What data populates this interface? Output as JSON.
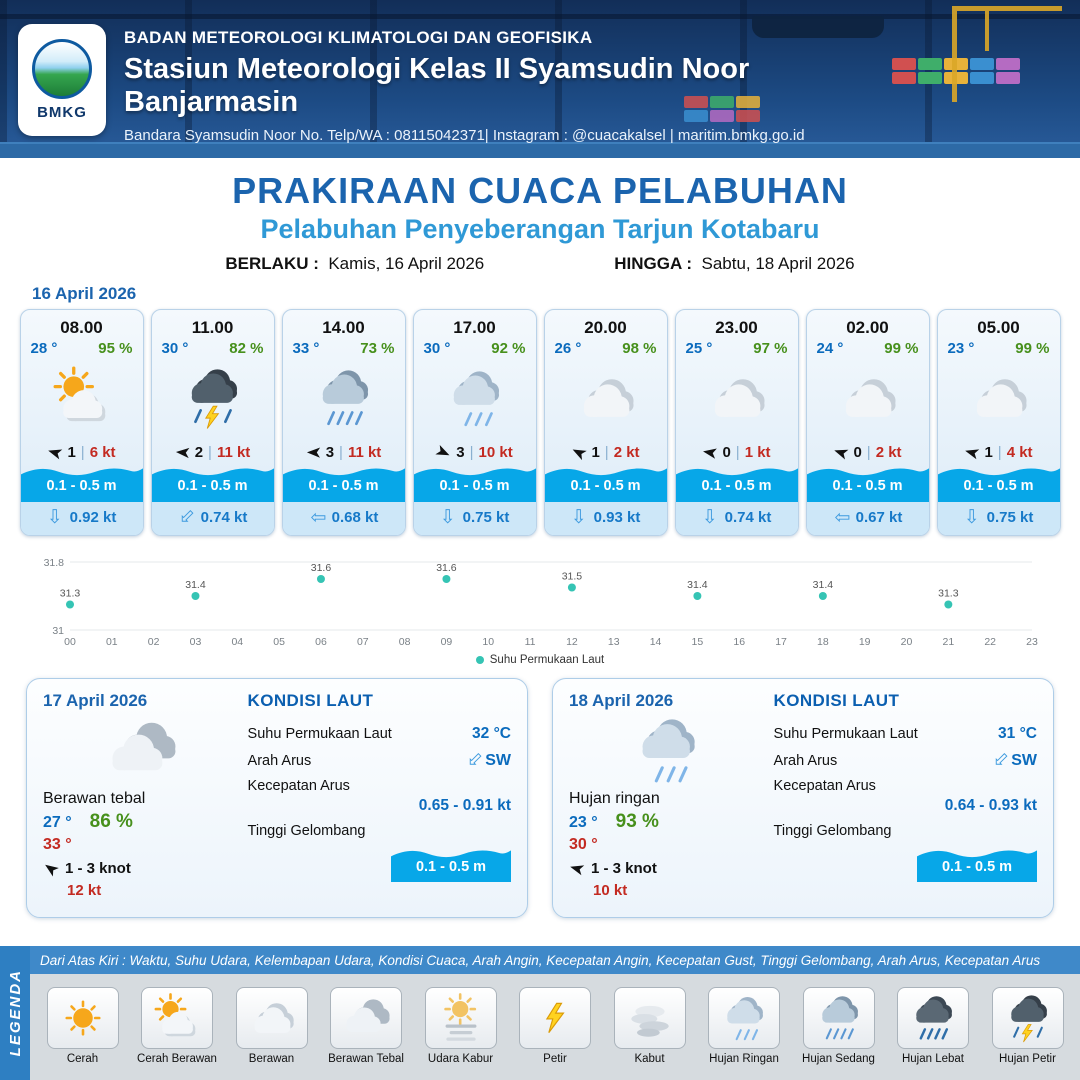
{
  "colors": {
    "title_blue": "#1b64ae",
    "subtitle_blue": "#2f99d6",
    "temp_blue": "#0b6bbd",
    "humidity_green": "#47901c",
    "alert_red": "#c32a21",
    "wave_blue": "#07a7e8",
    "chart_dot_teal": "#35c4b4",
    "header_navy": "#122e58"
  },
  "header": {
    "logo_text": "BMKG",
    "line1": "BADAN METEOROLOGI KLIMATOLOGI DAN GEOFISIKA",
    "line2": "Stasiun Meteorologi Kelas II Syamsudin Noor Banjarmasin",
    "line3": "Bandara Syamsudin Noor No. Telp/WA : 08115042371| Instagram : @cuacakalsel | maritim.bmkg.go.id"
  },
  "title": {
    "main": "PRAKIRAAN CUACA PELABUHAN",
    "sub": "Pelabuhan Penyeberangan Tarjun Kotabaru",
    "berlaku_label": "BERLAKU :",
    "berlaku_value": "Kamis, 16 April 2026",
    "hingga_label": "HINGGA :",
    "hingga_value": "Sabtu, 18 April 2026"
  },
  "forecast": {
    "date": "16 April 2026",
    "cards": [
      {
        "time": "08.00",
        "temp": "28 °",
        "humidity": "95 %",
        "icon": "cerah-berawan",
        "wind_dir_deg": 197,
        "wind_speed": "1",
        "gust": "6 kt",
        "wave": "0.1 - 0.5 m",
        "current_dir_deg": 0,
        "current_speed": "0.92 kt"
      },
      {
        "time": "11.00",
        "temp": "30 °",
        "humidity": "82 %",
        "icon": "hujan-petir",
        "wind_dir_deg": 184,
        "wind_speed": "2",
        "gust": "11 kt",
        "wave": "0.1 - 0.5 m",
        "current_dir_deg": 45,
        "current_speed": "0.74 kt"
      },
      {
        "time": "14.00",
        "temp": "33 °",
        "humidity": "73 %",
        "icon": "hujan-sedang",
        "wind_dir_deg": 181,
        "wind_speed": "3",
        "gust": "11 kt",
        "wave": "0.1 - 0.5 m",
        "current_dir_deg": 90,
        "current_speed": "0.68 kt"
      },
      {
        "time": "17.00",
        "temp": "30 °",
        "humidity": "92 %",
        "icon": "hujan-ringan",
        "wind_dir_deg": 25,
        "wind_speed": "3",
        "gust": "10 kt",
        "wave": "0.1 - 0.5 m",
        "current_dir_deg": 0,
        "current_speed": "0.75 kt"
      },
      {
        "time": "20.00",
        "temp": "26 °",
        "humidity": "98 %",
        "icon": "berawan",
        "wind_dir_deg": 207,
        "wind_speed": "1",
        "gust": "2 kt",
        "wave": "0.1 - 0.5 m",
        "current_dir_deg": 0,
        "current_speed": "0.93 kt"
      },
      {
        "time": "23.00",
        "temp": "25 °",
        "humidity": "97 %",
        "icon": "berawan",
        "wind_dir_deg": 190,
        "wind_speed": "0",
        "gust": "1 kt",
        "wave": "0.1 - 0.5 m",
        "current_dir_deg": 0,
        "current_speed": "0.74 kt"
      },
      {
        "time": "02.00",
        "temp": "24 °",
        "humidity": "99 %",
        "icon": "berawan",
        "wind_dir_deg": 199,
        "wind_speed": "0",
        "gust": "2 kt",
        "wave": "0.1 - 0.5 m",
        "current_dir_deg": 90,
        "current_speed": "0.67 kt"
      },
      {
        "time": "05.00",
        "temp": "23 °",
        "humidity": "99 %",
        "icon": "berawan",
        "wind_dir_deg": 196,
        "wind_speed": "1",
        "gust": "4 kt",
        "wave": "0.1 - 0.5 m",
        "current_dir_deg": 0,
        "current_speed": "0.75 kt"
      }
    ]
  },
  "chart_data": {
    "type": "line",
    "legend": "Suhu Permukaan Laut",
    "x": [
      0,
      3,
      6,
      9,
      12,
      15,
      18,
      21
    ],
    "values": [
      31.3,
      31.4,
      31.6,
      31.6,
      31.5,
      31.4,
      31.4,
      31.3
    ],
    "x_ticks": [
      "00",
      "01",
      "02",
      "03",
      "04",
      "05",
      "06",
      "07",
      "08",
      "09",
      "10",
      "11",
      "12",
      "13",
      "14",
      "15",
      "16",
      "17",
      "18",
      "19",
      "20",
      "21",
      "22",
      "23"
    ],
    "y_ticks": [
      "31.8",
      "31"
    ],
    "ylim": [
      31,
      31.8
    ],
    "dot_color": "#35c4b4",
    "grid": true,
    "legend_position": "bottom-center"
  },
  "days": [
    {
      "date": "17 April 2026",
      "icon": "berawan-tebal",
      "condition": "Berawan tebal",
      "temp_min": "27 °",
      "temp_max": "33 °",
      "humidity": "86 %",
      "wind_dir_deg": 215,
      "wind_range": "1 - 3 knot",
      "gust": "12 kt",
      "sea": {
        "title": "KONDISI LAUT",
        "sst_label": "Suhu Permukaan Laut",
        "sst_value": "32 °C",
        "current_dir_label": "Arah Arus",
        "current_dir": "SW",
        "current_dir_deg": 45,
        "current_speed_label": "Kecepatan Arus",
        "current_speed": "0.65 - 0.91 kt",
        "wave_label": "Tinggi Gelombang",
        "wave_value": "0.1 - 0.5 m"
      }
    },
    {
      "date": "18 April 2026",
      "icon": "hujan-ringan",
      "condition": "Hujan ringan",
      "temp_min": "23 °",
      "temp_max": "30 °",
      "humidity": "93 %",
      "wind_dir_deg": 196,
      "wind_range": "1 - 3 knot",
      "gust": "10 kt",
      "sea": {
        "title": "KONDISI LAUT",
        "sst_label": "Suhu Permukaan Laut",
        "sst_value": "31 °C",
        "current_dir_label": "Arah Arus",
        "current_dir": "SW",
        "current_dir_deg": 45,
        "current_speed_label": "Kecepatan Arus",
        "current_speed": "0.64 - 0.93 kt",
        "wave_label": "Tinggi Gelombang",
        "wave_value": "0.1 - 0.5 m"
      }
    }
  ],
  "legend": {
    "vertical_label": "LEGENDA",
    "description": "Dari Atas Kiri : Waktu, Suhu Udara, Kelembapan Udara, Kondisi Cuaca, Arah Angin, Kecepatan Angin, Kecepatan Gust, Tinggi Gelombang, Arah Arus, Kecepatan Arus",
    "items": [
      {
        "icon": "cerah",
        "label": "Cerah"
      },
      {
        "icon": "cerah-berawan",
        "label": "Cerah Berawan"
      },
      {
        "icon": "berawan",
        "label": "Berawan"
      },
      {
        "icon": "berawan-tebal",
        "label": "Berawan Tebal"
      },
      {
        "icon": "udara-kabur",
        "label": "Udara Kabur"
      },
      {
        "icon": "petir",
        "label": "Petir"
      },
      {
        "icon": "kabut",
        "label": "Kabut"
      },
      {
        "icon": "hujan-ringan",
        "label": "Hujan Ringan"
      },
      {
        "icon": "hujan-sedang",
        "label": "Hujan Sedang"
      },
      {
        "icon": "hujan-lebat",
        "label": "Hujan Lebat"
      },
      {
        "icon": "hujan-petir",
        "label": "Hujan Petir"
      }
    ]
  }
}
